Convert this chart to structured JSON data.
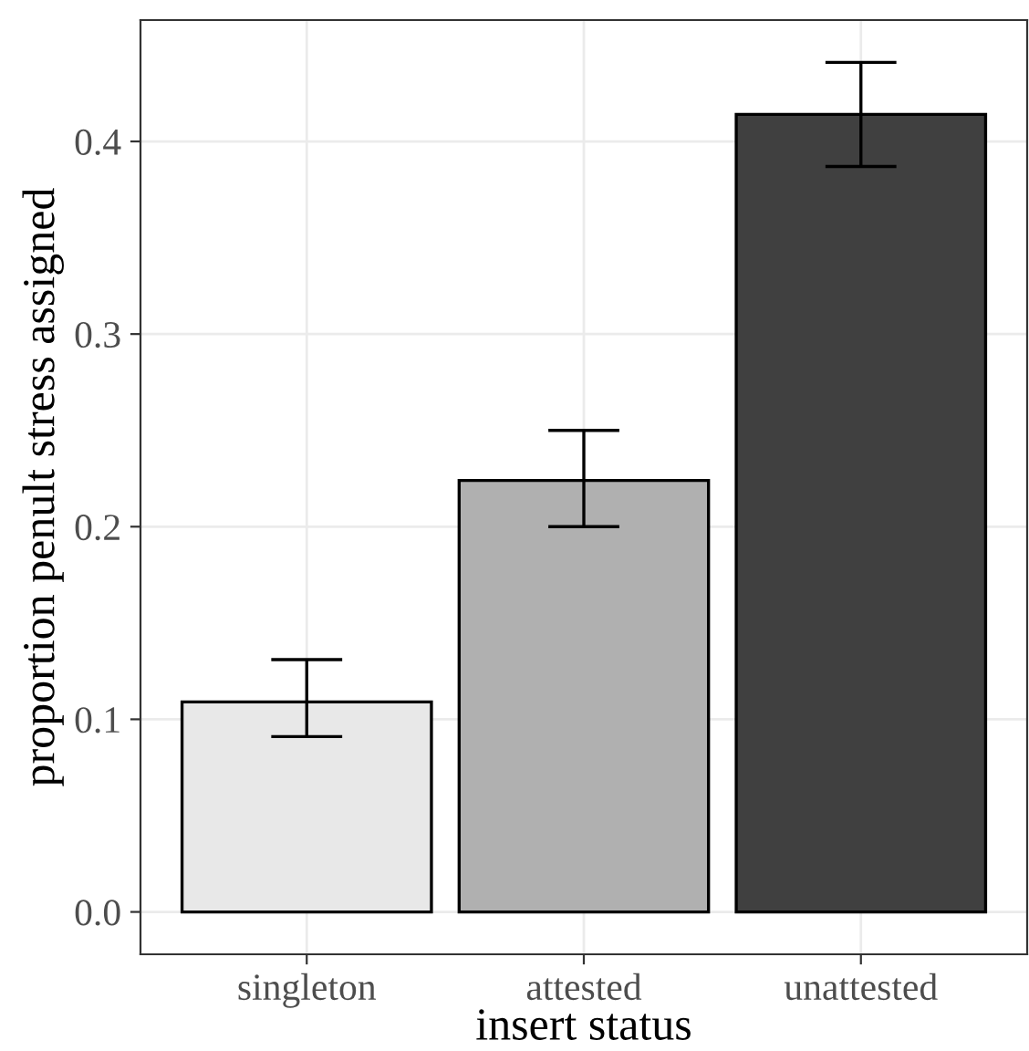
{
  "chart_data": {
    "type": "bar",
    "xlabel": "insert status",
    "ylabel": "proportion penult stress assigned",
    "categories": [
      "singleton",
      "attested",
      "unattested"
    ],
    "values": [
      0.109,
      0.224,
      0.414
    ],
    "colors": [
      "#e8e8e8",
      "#b0b0b0",
      "#404040"
    ],
    "errors": [
      [
        0.091,
        0.131
      ],
      [
        0.2,
        0.25
      ],
      [
        0.387,
        0.441
      ]
    ],
    "ylim": [
      -0.022,
      0.463
    ],
    "yticks": [
      {
        "value": 0,
        "label": "0.0"
      },
      {
        "value": 0.1,
        "label": "0.1"
      },
      {
        "value": 0.2,
        "label": "0.2"
      },
      {
        "value": 0.3,
        "label": "0.3"
      },
      {
        "value": 0.4,
        "label": "0.4"
      }
    ],
    "grid": true
  }
}
